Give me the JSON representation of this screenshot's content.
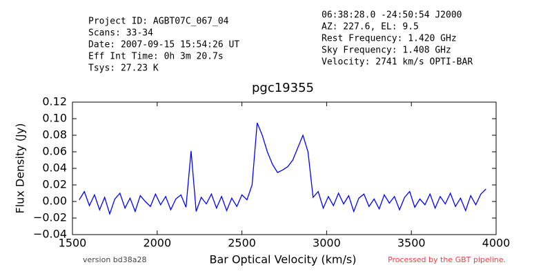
{
  "header": {
    "left": [
      "Project ID: AGBT07C_067_04",
      "Scans: 33-34",
      "Date: 2007-09-15 15:54:26 UT",
      "Eff Int Time: 0h 3m 20.7s",
      "Tsys: 27.23 K"
    ],
    "right": [
      "06:38:28.0 -24:50:54 J2000",
      "AZ: 227.6, EL: 9.5",
      "Rest Frequency:   1.420 GHz",
      "Sky Frequency:    1.408 GHz",
      "Velocity: 2741 km/s OPTI-BAR"
    ]
  },
  "footer": {
    "left": "version bd38a28",
    "right": "Processed by the GBT pipeline."
  },
  "chart_data": {
    "type": "line",
    "title": "pgc19355",
    "x_label": "Bar Optical Velocity (km/s)",
    "y_label": "Flux Density (Jy)",
    "color": "#0000ff",
    "xlim": [
      1500,
      4000
    ],
    "xticks": [
      1500,
      2000,
      2500,
      3000,
      3500,
      4000
    ],
    "ylim": [
      -0.04,
      0.12
    ],
    "yticks": [
      {
        "value": -0.04,
        "label": "−0.04"
      },
      {
        "value": -0.02,
        "label": "−0.02"
      },
      {
        "value": 0,
        "label": "0.00"
      },
      {
        "value": 0.02,
        "label": "0.02"
      },
      {
        "value": 0.04,
        "label": "0.04"
      },
      {
        "value": 0.06,
        "label": "0.06"
      },
      {
        "value": 0.08,
        "label": "0.08"
      },
      {
        "value": 0.1,
        "label": "0.10"
      },
      {
        "value": 0.12,
        "label": "0.12"
      }
    ],
    "x": [
      1540,
      1570,
      1600,
      1630,
      1660,
      1690,
      1720,
      1750,
      1780,
      1810,
      1840,
      1870,
      1900,
      1930,
      1960,
      1990,
      2020,
      2050,
      2080,
      2110,
      2140,
      2170,
      2200,
      2230,
      2260,
      2290,
      2320,
      2350,
      2380,
      2410,
      2440,
      2470,
      2500,
      2530,
      2560,
      2590,
      2620,
      2650,
      2680,
      2710,
      2740,
      2770,
      2800,
      2830,
      2860,
      2890,
      2920,
      2950,
      2980,
      3010,
      3040,
      3070,
      3100,
      3130,
      3160,
      3190,
      3220,
      3250,
      3280,
      3310,
      3340,
      3370,
      3400,
      3430,
      3460,
      3490,
      3520,
      3550,
      3580,
      3610,
      3640,
      3670,
      3700,
      3730,
      3760,
      3790,
      3820,
      3850,
      3880,
      3910,
      3940
    ],
    "values": [
      0.002,
      0.012,
      -0.005,
      0.008,
      -0.01,
      0.005,
      -0.015,
      0.003,
      0.01,
      -0.008,
      0.004,
      -0.012,
      0.007,
      0,
      -0.006,
      0.009,
      -0.004,
      0.006,
      -0.01,
      0.003,
      0.008,
      -0.007,
      0.061,
      -0.012,
      0.005,
      -0.003,
      0.009,
      -0.008,
      0.006,
      -0.011,
      0.004,
      -0.006,
      0.008,
      0.002,
      0.02,
      0.095,
      0.08,
      0.06,
      0.045,
      0.035,
      0.038,
      0.042,
      0.05,
      0.065,
      0.08,
      0.06,
      0.005,
      0.012,
      -0.008,
      0.006,
      -0.005,
      0.01,
      -0.003,
      0.007,
      -0.012,
      0.004,
      0.009,
      -0.006,
      0.003,
      -0.009,
      0.008,
      -0.002,
      0.006,
      -0.01,
      0.005,
      0.012,
      -0.007,
      0.003,
      -0.004,
      0.009,
      -0.008,
      0.006,
      -0.003,
      0.01,
      -0.006,
      0.004,
      -0.011,
      0.007,
      -0.004,
      0.009,
      0.015
    ]
  }
}
